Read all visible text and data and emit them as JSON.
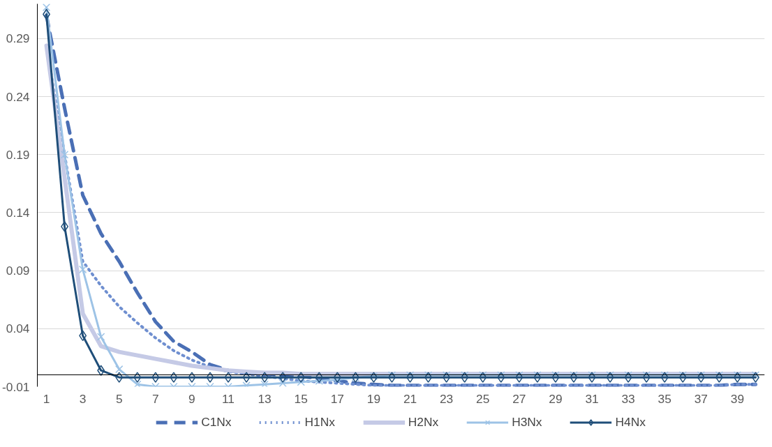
{
  "chart_data": {
    "type": "line",
    "x": [
      1,
      2,
      3,
      4,
      5,
      6,
      7,
      8,
      9,
      10,
      11,
      12,
      13,
      14,
      15,
      16,
      17,
      18,
      19,
      20,
      21,
      22,
      23,
      24,
      25,
      26,
      27,
      28,
      29,
      30,
      31,
      32,
      33,
      34,
      35,
      36,
      37,
      38,
      39,
      40
    ],
    "xlim": [
      0.5,
      40.5
    ],
    "xticks": [
      1,
      3,
      5,
      7,
      9,
      11,
      13,
      15,
      17,
      19,
      21,
      23,
      25,
      27,
      29,
      31,
      33,
      35,
      37,
      39
    ],
    "ylim": [
      -0.01,
      0.32
    ],
    "yticks": [
      -0.01,
      0.04,
      0.09,
      0.14,
      0.19,
      0.24,
      0.29
    ],
    "grid": "y",
    "legend": "bottom",
    "series": [
      {
        "name": "C1Nx",
        "color": "#4a6fb5",
        "line_style": "dashed",
        "marker": "none",
        "values": [
          0.31,
          0.23,
          0.155,
          0.122,
          0.098,
          0.071,
          0.046,
          0.029,
          0.02,
          0.009,
          0.004,
          0.002,
          0.001,
          0,
          -0.001,
          -0.003,
          -0.005,
          -0.007,
          -0.008,
          -0.009,
          -0.009,
          -0.009,
          -0.009,
          -0.009,
          -0.009,
          -0.009,
          -0.009,
          -0.009,
          -0.009,
          -0.009,
          -0.009,
          -0.009,
          -0.009,
          -0.009,
          -0.009,
          -0.009,
          -0.009,
          -0.009,
          -0.008,
          -0.008
        ]
      },
      {
        "name": "H1Nx",
        "color": "#6f8fd0",
        "line_style": "dotted",
        "marker": "none",
        "values": [
          0.284,
          0.19,
          0.098,
          0.077,
          0.059,
          0.045,
          0.032,
          0.021,
          0.013,
          0.007,
          0.003,
          0.001,
          -0.001,
          -0.003,
          -0.005,
          -0.006,
          -0.007,
          -0.008,
          -0.009,
          -0.009,
          -0.009,
          -0.009,
          -0.009,
          -0.009,
          -0.009,
          -0.009,
          -0.009,
          -0.009,
          -0.009,
          -0.009,
          -0.009,
          -0.009,
          -0.009,
          -0.009,
          -0.009,
          -0.009,
          -0.009,
          -0.009,
          -0.008,
          -0.008
        ]
      },
      {
        "name": "H2Nx",
        "color": "#c5cae6",
        "line_style": "solid",
        "marker": "none",
        "values": [
          0.284,
          0.17,
          0.053,
          0.025,
          0.02,
          0.017,
          0.014,
          0.011,
          0.008,
          0.006,
          0.004,
          0.003,
          0.002,
          0.002,
          0.001,
          0.001,
          0.001,
          0.001,
          0.001,
          0.001,
          0.001,
          0.001,
          0.001,
          0.001,
          0.001,
          0.001,
          0.001,
          0.001,
          0.001,
          0.001,
          0.001,
          0.001,
          0.001,
          0.001,
          0.001,
          0.001,
          0.001,
          0.001,
          0.001,
          0.001
        ]
      },
      {
        "name": "H3Nx",
        "color": "#9dc3e6",
        "line_style": "solid",
        "marker": "cross",
        "values": [
          0.317,
          0.19,
          0.091,
          0.033,
          0.005,
          -0.008,
          -0.01,
          -0.01,
          -0.01,
          -0.01,
          -0.01,
          -0.009,
          -0.008,
          -0.007,
          -0.006,
          -0.005,
          -0.004,
          -0.002,
          -0.001,
          0,
          0,
          0,
          0,
          0,
          0,
          0,
          0,
          0,
          0,
          0,
          0,
          0,
          0,
          0,
          0,
          0,
          0,
          0,
          0,
          0
        ]
      },
      {
        "name": "H4Nx",
        "color": "#1f4e79",
        "line_style": "solid",
        "marker": "diamond",
        "values": [
          0.311,
          0.128,
          0.034,
          0.004,
          -0.002,
          -0.002,
          -0.002,
          -0.002,
          -0.002,
          -0.002,
          -0.002,
          -0.002,
          -0.002,
          -0.002,
          -0.002,
          -0.002,
          -0.002,
          -0.002,
          -0.002,
          -0.002,
          -0.002,
          -0.002,
          -0.002,
          -0.002,
          -0.002,
          -0.002,
          -0.002,
          -0.002,
          -0.002,
          -0.002,
          -0.002,
          -0.002,
          -0.002,
          -0.002,
          -0.002,
          -0.002,
          -0.002,
          -0.002,
          -0.002,
          -0.002
        ]
      }
    ]
  }
}
